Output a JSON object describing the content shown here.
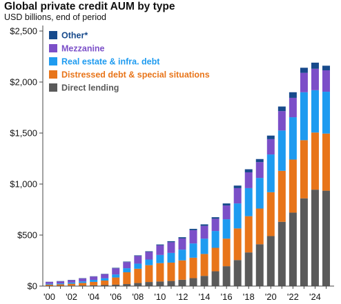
{
  "chart_data": {
    "type": "bar",
    "stacked": true,
    "title": "Global private credit AUM by type",
    "subtitle": "USD billions, end of period",
    "ylim": [
      0,
      2500
    ],
    "y_ticks": [
      "$0",
      "$500",
      "$1,000",
      "$1,500",
      "$2,000",
      "$2,500"
    ],
    "y_tick_values": [
      0,
      500,
      1000,
      1500,
      2000,
      2500
    ],
    "x_tick_labels": [
      "'00",
      "'02",
      "'04",
      "'06",
      "'08",
      "'10",
      "'12",
      "'14",
      "'16",
      "'18",
      "'20",
      "'22",
      "'24"
    ],
    "legend_position": "top-left",
    "grid": false,
    "categories": [
      "2000",
      "2001",
      "2002",
      "2003",
      "2004",
      "2005",
      "2006",
      "2007",
      "2008",
      "2009",
      "2010",
      "2011",
      "2012",
      "2013",
      "2014",
      "2015",
      "2016",
      "2017",
      "2018",
      "2019",
      "2020",
      "2021",
      "2022",
      "2023",
      "2024",
      "2025"
    ],
    "series": [
      {
        "name": "Direct lending",
        "color": "#5a5a5a",
        "values": [
          2,
          3,
          5,
          6,
          8,
          10,
          14,
          20,
          30,
          40,
          45,
          50,
          62,
          78,
          100,
          145,
          195,
          255,
          330,
          410,
          490,
          630,
          720,
          860,
          945,
          935
        ]
      },
      {
        "name": "Distressed debt & special situations",
        "color": "#e8751a",
        "values": [
          12,
          14,
          18,
          25,
          33,
          44,
          70,
          115,
          140,
          165,
          180,
          180,
          190,
          200,
          215,
          230,
          270,
          310,
          355,
          350,
          430,
          500,
          520,
          570,
          560,
          560
        ]
      },
      {
        "name": "Real estate & infra. debt",
        "color": "#1e9bf0",
        "values": [
          8,
          9,
          12,
          15,
          20,
          23,
          30,
          40,
          50,
          55,
          80,
          95,
          105,
          140,
          150,
          165,
          190,
          245,
          275,
          300,
          370,
          395,
          415,
          470,
          415,
          410
        ]
      },
      {
        "name": "Mezzanine",
        "color": "#7b4fc8",
        "values": [
          18,
          20,
          22,
          28,
          32,
          40,
          60,
          60,
          75,
          75,
          95,
          105,
          110,
          130,
          125,
          120,
          135,
          150,
          155,
          155,
          150,
          190,
          190,
          190,
          210,
          210
        ]
      },
      {
        "name": "Other*",
        "color": "#174a8c",
        "values": [
          2,
          3,
          3,
          3,
          3,
          3,
          5,
          5,
          6,
          6,
          8,
          10,
          12,
          13,
          15,
          15,
          20,
          25,
          30,
          30,
          35,
          45,
          55,
          50,
          60,
          45
        ]
      }
    ]
  }
}
